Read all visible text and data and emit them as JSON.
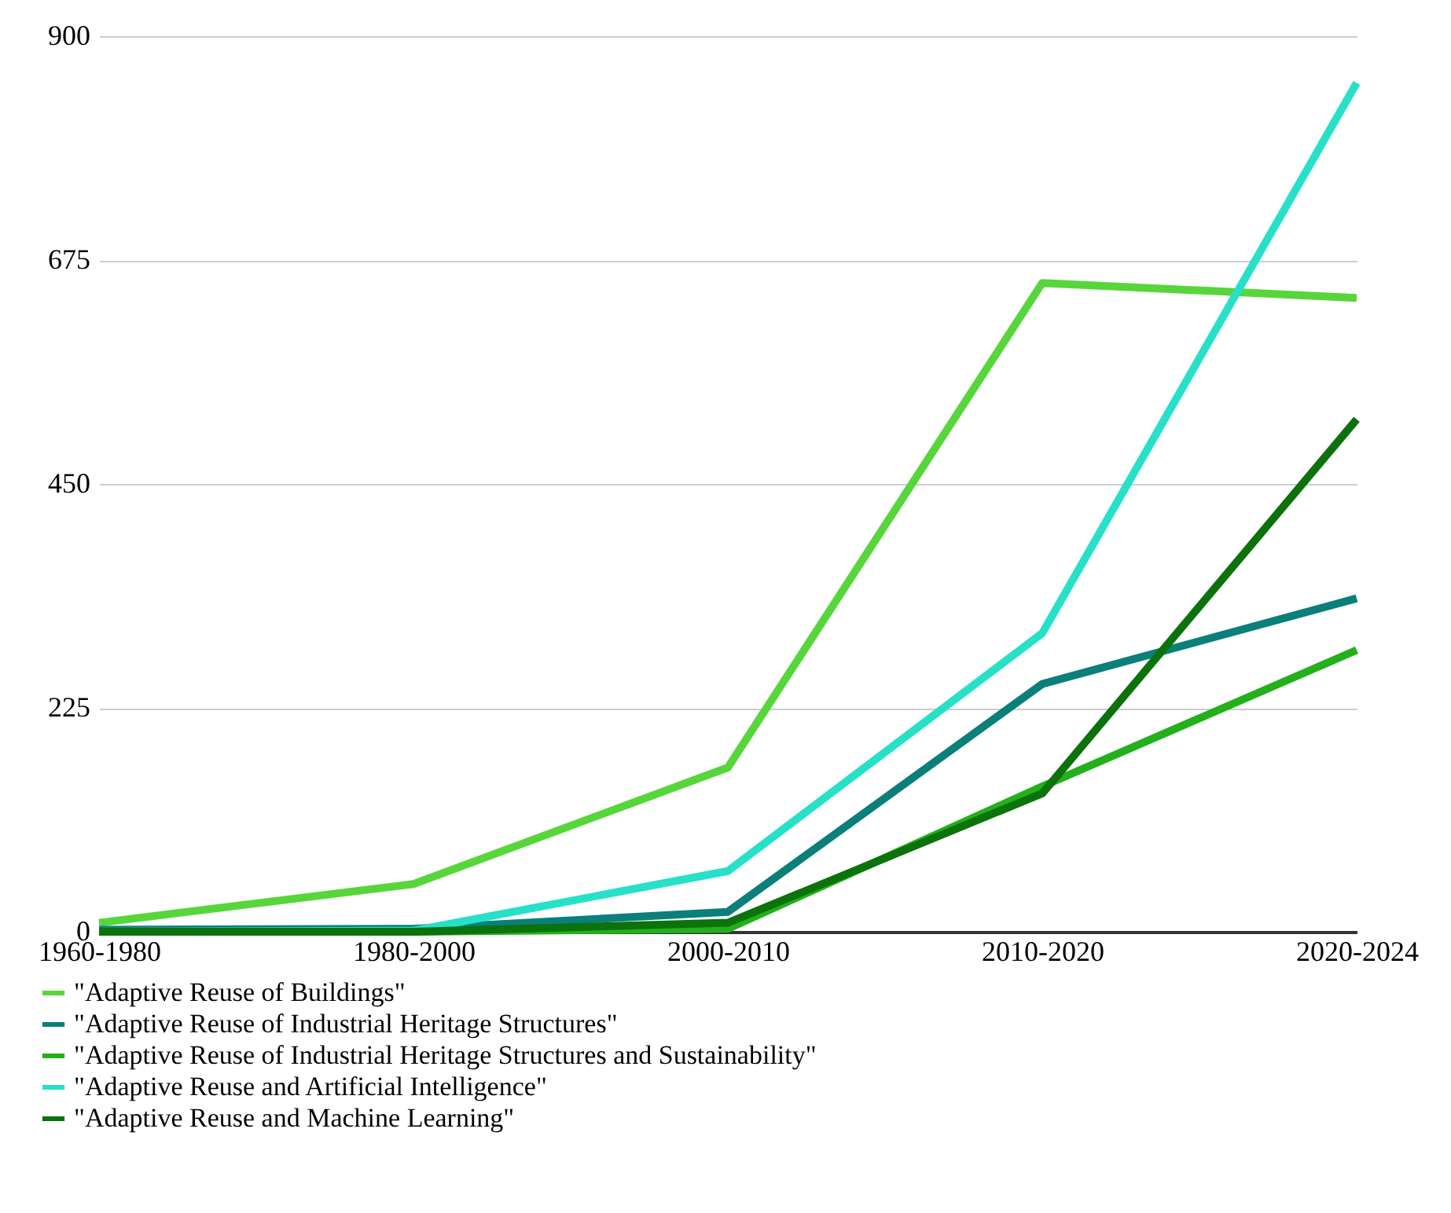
{
  "chart_data": {
    "type": "line",
    "categories": [
      "1960-1980",
      "1980-2000",
      "2000-2010",
      "2010-2020",
      "2020-2024"
    ],
    "series": [
      {
        "name": "\"Adaptive Reuse of Buildings\"",
        "color": "#57d63b",
        "values": [
          9,
          48,
          165,
          652,
          637
        ]
      },
      {
        "name": "\"Adaptive Reuse of Industrial Heritage Structures\"",
        "color": "#0b7f7a",
        "values": [
          2,
          3,
          20,
          249,
          335
        ]
      },
      {
        "name": "\"Adaptive Reuse of Industrial Heritage Structures and Sustainability\"",
        "color": "#23b01a",
        "values": [
          0,
          0,
          3,
          146,
          283
        ]
      },
      {
        "name": "\"Adaptive Reuse and Artificial Intelligence\"",
        "color": "#27e0c8",
        "values": [
          0,
          1,
          61,
          300,
          853
        ]
      },
      {
        "name": "\"Adaptive Reuse and Machine Learning\"",
        "color": "#0b720c",
        "values": [
          0,
          0,
          9,
          139,
          515
        ]
      }
    ],
    "ylim": [
      0,
      900
    ],
    "yticks": [
      0,
      225,
      450,
      675,
      900
    ],
    "grid": "y",
    "legend": "bottom left",
    "marker": "none",
    "line_style": "solid"
  }
}
